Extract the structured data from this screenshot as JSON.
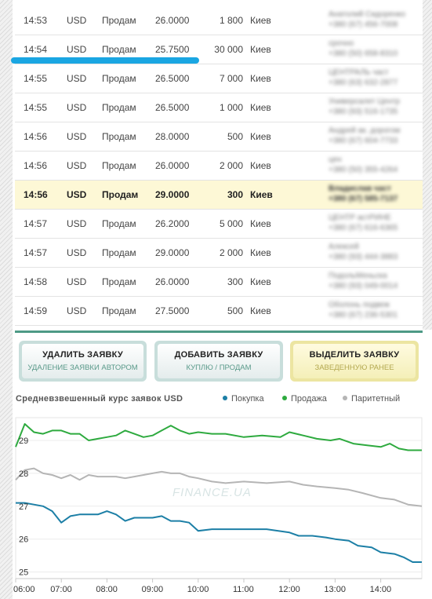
{
  "orders": [
    {
      "time": "14:53",
      "currency": "USD",
      "type": "Продам",
      "rate": "26.0000",
      "amount": "1 800",
      "city": "Киев",
      "contact": [
        "Анатолий Сидоренко",
        "+380 (67) 456-7008"
      ],
      "highlight": false
    },
    {
      "time": "14:54",
      "currency": "USD",
      "type": "Продам",
      "rate": "25.7500",
      "amount": "30 000",
      "city": "Киев",
      "contact": [
        "срочно",
        "+380 (50) 658-8310"
      ],
      "highlight": false
    },
    {
      "time": "14:55",
      "currency": "USD",
      "type": "Продам",
      "rate": "26.5000",
      "amount": "7 000",
      "city": "Киев",
      "contact": [
        "ЦЕНТРАЛЬ част",
        "+380 (63) 632-2877"
      ],
      "highlight": false
    },
    {
      "time": "14:55",
      "currency": "USD",
      "type": "Продам",
      "rate": "26.5000",
      "amount": "1 000",
      "city": "Киев",
      "contact": [
        "Универсалет Центр",
        "+380 (93) 516-1735"
      ],
      "highlight": false
    },
    {
      "time": "14:56",
      "currency": "USD",
      "type": "Продам",
      "rate": "28.0000",
      "amount": "500",
      "city": "Киев",
      "contact": [
        "Андрей ак. дорогом",
        "+380 (67) 604-7733"
      ],
      "highlight": false
    },
    {
      "time": "14:56",
      "currency": "USD",
      "type": "Продам",
      "rate": "26.0000",
      "amount": "2 000",
      "city": "Киев",
      "contact": [
        "цен",
        "+380 (50) 355-4264"
      ],
      "highlight": false
    },
    {
      "time": "14:56",
      "currency": "USD",
      "type": "Продам",
      "rate": "29.0000",
      "amount": "300",
      "city": "Киев",
      "contact": [
        "Владислав част",
        "+380 (67) 585-7137"
      ],
      "highlight": true
    },
    {
      "time": "14:57",
      "currency": "USD",
      "type": "Продам",
      "rate": "26.2000",
      "amount": "5 000",
      "city": "Киев",
      "contact": [
        "ЦЕНТР астРИНЕ",
        "+380 (67) 616-6365"
      ],
      "highlight": false
    },
    {
      "time": "14:57",
      "currency": "USD",
      "type": "Продам",
      "rate": "29.0000",
      "amount": "2 000",
      "city": "Киев",
      "contact": [
        "Алексей",
        "+380 (93) 444-3883"
      ],
      "highlight": false
    },
    {
      "time": "14:58",
      "currency": "USD",
      "type": "Продам",
      "rate": "26.0000",
      "amount": "300",
      "city": "Киев",
      "contact": [
        "ПодольМеньска",
        "+380 (93) 049-0014"
      ],
      "highlight": false
    },
    {
      "time": "14:59",
      "currency": "USD",
      "type": "Продам",
      "rate": "27.5000",
      "amount": "500",
      "city": "Киев",
      "contact": [
        "Оболонь подвеж",
        "+380 (67) 236-5301"
      ],
      "highlight": false
    }
  ],
  "actions": {
    "delete": {
      "title": "УДАЛИТЬ ЗАЯВКУ",
      "subtitle": "УДАЛЕНИЕ ЗАЯВКИ АВТОРОМ"
    },
    "add": {
      "title": "ДОБАВИТЬ ЗАЯВКУ",
      "subtitle": "КУПЛЮ / ПРОДАМ"
    },
    "select": {
      "title": "ВЫДЕЛИТЬ ЗАЯВКУ",
      "subtitle": "ЗАВЕДЕННУЮ РАНЕЕ"
    }
  },
  "chart_data": {
    "type": "line",
    "title": "Средневзвешенный курс заявок USD",
    "watermark": "FINANCE.UA",
    "x_ticks": [
      "06:00",
      "07:00",
      "08:00",
      "09:00",
      "10:00",
      "11:00",
      "12:00",
      "13:00",
      "14:00"
    ],
    "y_ticks": [
      25,
      26,
      27,
      28,
      29
    ],
    "ylim": [
      24.8,
      29.5
    ],
    "xlim": [
      6.0,
      14.9
    ],
    "legend_position": "top-right",
    "grid": "horizontal",
    "series": [
      {
        "name": "Покупка",
        "color": "#1c7fa6",
        "x": [
          6.0,
          6.2,
          6.4,
          6.6,
          6.8,
          7.0,
          7.2,
          7.4,
          7.6,
          7.8,
          8.0,
          8.2,
          8.4,
          8.6,
          8.8,
          9.0,
          9.2,
          9.4,
          9.6,
          9.8,
          10.0,
          10.3,
          10.6,
          11.0,
          11.5,
          12.0,
          12.2,
          12.5,
          12.8,
          13.0,
          13.3,
          13.5,
          13.8,
          14.0,
          14.3,
          14.5,
          14.7,
          14.9
        ],
        "values": [
          27.1,
          27.1,
          27.05,
          27.0,
          26.85,
          26.5,
          26.7,
          26.75,
          26.75,
          26.75,
          26.85,
          26.75,
          26.55,
          26.65,
          26.65,
          26.65,
          26.7,
          26.55,
          26.55,
          26.5,
          26.25,
          26.3,
          26.3,
          26.3,
          26.3,
          26.2,
          26.1,
          26.1,
          26.05,
          26.0,
          25.95,
          25.8,
          25.75,
          25.6,
          25.55,
          25.45,
          25.3,
          25.3
        ]
      },
      {
        "name": "Продажа",
        "color": "#2eaa3f",
        "x": [
          6.0,
          6.2,
          6.4,
          6.6,
          6.8,
          7.0,
          7.2,
          7.4,
          7.6,
          7.8,
          8.0,
          8.2,
          8.4,
          8.6,
          8.8,
          9.0,
          9.2,
          9.4,
          9.6,
          9.8,
          10.0,
          10.3,
          10.6,
          11.0,
          11.4,
          11.8,
          12.0,
          12.3,
          12.6,
          12.9,
          13.1,
          13.4,
          13.7,
          14.0,
          14.2,
          14.4,
          14.6,
          14.9
        ],
        "values": [
          28.8,
          29.5,
          29.25,
          29.2,
          29.3,
          29.3,
          29.2,
          29.2,
          29.0,
          29.05,
          29.1,
          29.15,
          29.3,
          29.2,
          29.1,
          29.15,
          29.3,
          29.45,
          29.3,
          29.2,
          29.25,
          29.2,
          29.2,
          29.1,
          29.15,
          29.1,
          29.25,
          29.15,
          29.05,
          29.0,
          29.05,
          28.9,
          28.85,
          28.8,
          28.9,
          28.75,
          28.7,
          28.7
        ]
      },
      {
        "name": "Паритетный",
        "color": "#b5b5b5",
        "x": [
          6.0,
          6.2,
          6.4,
          6.6,
          6.8,
          7.0,
          7.2,
          7.4,
          7.6,
          7.8,
          8.0,
          8.2,
          8.4,
          8.6,
          8.8,
          9.0,
          9.2,
          9.4,
          9.6,
          9.8,
          10.0,
          10.3,
          10.6,
          11.0,
          11.5,
          12.0,
          12.3,
          12.6,
          13.0,
          13.3,
          13.6,
          14.0,
          14.3,
          14.6,
          14.9
        ],
        "values": [
          27.8,
          28.1,
          28.15,
          28.0,
          27.95,
          27.85,
          27.95,
          27.8,
          27.95,
          27.9,
          27.9,
          27.9,
          27.85,
          27.9,
          27.95,
          28.0,
          28.05,
          28.0,
          28.0,
          27.9,
          27.85,
          27.75,
          27.7,
          27.75,
          27.7,
          27.75,
          27.65,
          27.6,
          27.55,
          27.5,
          27.4,
          27.25,
          27.2,
          27.05,
          27.0
        ]
      }
    ]
  }
}
